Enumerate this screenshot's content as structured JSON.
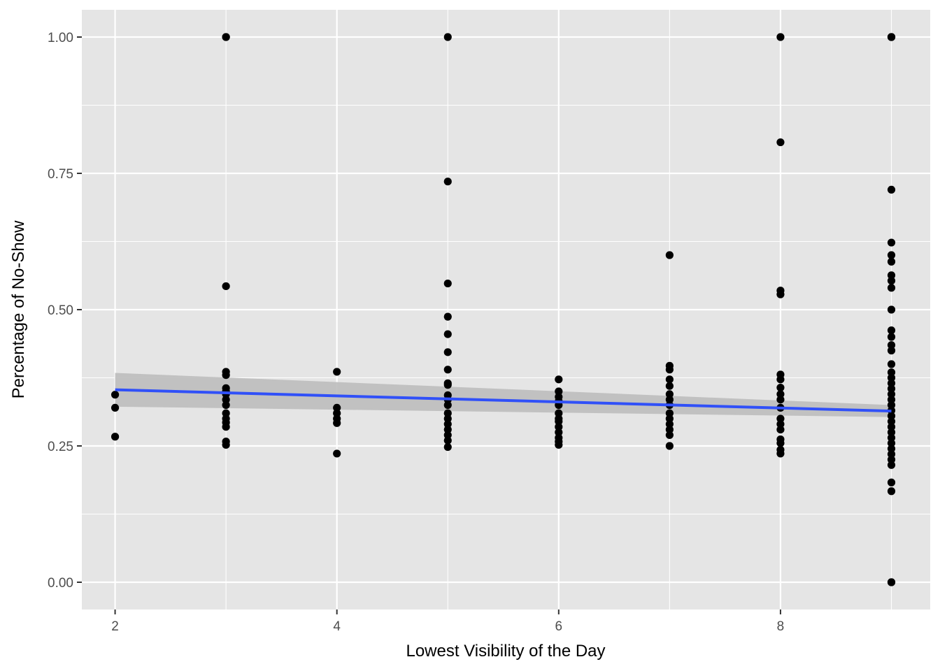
{
  "chart_data": {
    "type": "scatter",
    "title": "",
    "xlabel": "Lowest Visibility of the Day",
    "ylabel": "Percentage of No-Show",
    "xlim": [
      1.7,
      9.35
    ],
    "ylim": [
      -0.05,
      1.05
    ],
    "x_ticks": [
      2,
      4,
      6,
      8
    ],
    "x_tick_labels": [
      "2",
      "4",
      "6",
      "8"
    ],
    "y_ticks": [
      0,
      0.25,
      0.5,
      0.75,
      1.0
    ],
    "y_tick_labels": [
      "0.00",
      "0.25",
      "0.50",
      "0.75",
      "1.00"
    ],
    "grid": true,
    "legend": "none",
    "colors": {
      "panel": "#e5e5e5",
      "grid": "#ffffff",
      "points": "#000000",
      "fit_line": "#3050f8",
      "confidence_band": "#bdbdbd"
    },
    "points": [
      {
        "x": 2,
        "y": [
          0.344,
          0.32,
          0.267
        ]
      },
      {
        "x": 3,
        "y": [
          1.0,
          1.0,
          0.543,
          0.386,
          0.38,
          0.356,
          0.35,
          0.345,
          0.335,
          0.325,
          0.31,
          0.3,
          0.293,
          0.285,
          0.258,
          0.252
        ]
      },
      {
        "x": 4,
        "y": [
          0.386,
          0.32,
          0.31,
          0.3,
          0.292,
          0.236
        ]
      },
      {
        "x": 5,
        "y": [
          1.0,
          0.735,
          0.548,
          0.487,
          0.455,
          0.422,
          0.39,
          0.365,
          0.362,
          0.343,
          0.335,
          0.325,
          0.31,
          0.3,
          0.29,
          0.28,
          0.27,
          0.26,
          0.248
        ]
      },
      {
        "x": 6,
        "y": [
          0.372,
          0.35,
          0.34,
          0.332,
          0.325,
          0.31,
          0.3,
          0.295,
          0.285,
          0.275,
          0.265,
          0.258,
          0.252
        ]
      },
      {
        "x": 7,
        "y": [
          0.6,
          0.397,
          0.39,
          0.372,
          0.36,
          0.345,
          0.335,
          0.325,
          0.31,
          0.3,
          0.29,
          0.28,
          0.27,
          0.25
        ]
      },
      {
        "x": 8,
        "y": [
          1.0,
          0.807,
          0.535,
          0.528,
          0.381,
          0.372,
          0.357,
          0.345,
          0.335,
          0.32,
          0.3,
          0.29,
          0.28,
          0.262,
          0.255,
          0.243,
          0.236
        ]
      },
      {
        "x": 9,
        "y": [
          1.0,
          1.0,
          1.0,
          0.72,
          0.623,
          0.6,
          0.588,
          0.563,
          0.553,
          0.54,
          0.5,
          0.462,
          0.45,
          0.435,
          0.425,
          0.4,
          0.385,
          0.375,
          0.365,
          0.355,
          0.345,
          0.335,
          0.325,
          0.315,
          0.305,
          0.295,
          0.285,
          0.275,
          0.265,
          0.255,
          0.245,
          0.235,
          0.225,
          0.215,
          0.183,
          0.167,
          0.0,
          0.0
        ]
      }
    ],
    "fit_line": [
      {
        "x": 2,
        "y": 0.353
      },
      {
        "x": 9,
        "y": 0.314
      }
    ],
    "confidence_band": [
      {
        "x": 2,
        "lower": 0.322,
        "upper": 0.384
      },
      {
        "x": 9,
        "lower": 0.303,
        "upper": 0.325
      }
    ]
  }
}
